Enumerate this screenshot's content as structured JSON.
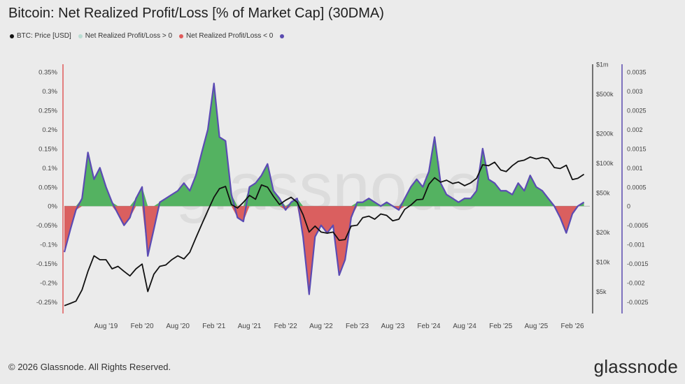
{
  "title": "Bitcoin: Net Realized Profit/Loss [% of Market Cap] (30DMA)",
  "legend": [
    {
      "label": "BTC: Price [USD]",
      "color": "#111111"
    },
    {
      "label": "Net Realized Profit/Loss > 0",
      "color": "#b9ddd2"
    },
    {
      "label": "Net Realized Profit/Loss < 0",
      "color": "#e05b5b"
    },
    {
      "label": "",
      "color": "#5a4bb0"
    }
  ],
  "footer": "© 2026 Glassnode. All Rights Reserved.",
  "logo": "glassnode",
  "watermark": "glassnode",
  "colors": {
    "positive_fill": "#4caf5a",
    "negative_fill": "#d95757",
    "outline": "#5b4bb3",
    "price": "#111111",
    "left_axis": "#e05b5b",
    "right_axis": "#5a4bb0"
  },
  "chart_data": {
    "type": "area",
    "title": "Bitcoin: Net Realized Profit/Loss [% of Market Cap] (30DMA)",
    "x_range": [
      "2019-01-01",
      "2026-05-01"
    ],
    "x_ticks": [
      "Aug '19",
      "Feb '20",
      "Aug '20",
      "Feb '21",
      "Aug '21",
      "Feb '22",
      "Aug '22",
      "Feb '23",
      "Aug '23",
      "Feb '24",
      "Aug '24",
      "Feb '25",
      "Aug '25",
      "Feb '26"
    ],
    "x_tick_dates": [
      "2019-08-01",
      "2020-02-01",
      "2020-08-01",
      "2021-02-01",
      "2021-08-01",
      "2022-02-01",
      "2022-08-01",
      "2023-02-01",
      "2023-08-01",
      "2024-02-01",
      "2024-08-01",
      "2025-02-01",
      "2025-08-01",
      "2026-02-01"
    ],
    "left_axis": {
      "ticks": [
        0.35,
        0.3,
        0.25,
        0.2,
        0.15,
        0.1,
        0.05,
        0,
        -0.05,
        -0.1,
        -0.15,
        -0.2,
        -0.25
      ],
      "labels": [
        "0.35%",
        "0.3%",
        "0.25%",
        "0.2%",
        "0.15%",
        "0.1%",
        "0.05%",
        "0%",
        "-0.05%",
        "-0.1%",
        "-0.15%",
        "-0.2%",
        "-0.25%"
      ],
      "ylim": [
        -0.28,
        0.37
      ]
    },
    "price_axis": {
      "scale": "log",
      "ticks": [
        1000000,
        500000,
        200000,
        100000,
        50000,
        20000,
        10000,
        5000
      ],
      "labels": [
        "$1m",
        "$500k",
        "$200k",
        "$100k",
        "$50k",
        "$20k",
        "$10k",
        "$5k"
      ],
      "ylim": [
        3000,
        1000000
      ]
    },
    "right_axis": {
      "ticks": [
        0.0035,
        0.003,
        0.0025,
        0.002,
        0.0015,
        0.001,
        0.0005,
        0,
        -0.0005,
        -0.001,
        -0.0015,
        -0.002,
        -0.0025
      ],
      "labels": [
        "0.0035",
        "0.003",
        "0.0025",
        "0.002",
        "0.0015",
        "0.001",
        "0.0005",
        "0",
        "-0.0005",
        "-0.001",
        "-0.0015",
        "-0.002",
        "-0.0025"
      ]
    },
    "series": [
      {
        "name": "Net Realized Profit/Loss",
        "x": [
          "2019-01-01",
          "2019-02-01",
          "2019-03-01",
          "2019-04-01",
          "2019-05-01",
          "2019-06-01",
          "2019-07-01",
          "2019-08-01",
          "2019-09-01",
          "2019-10-01",
          "2019-11-01",
          "2019-12-01",
          "2020-01-01",
          "2020-02-01",
          "2020-03-01",
          "2020-04-01",
          "2020-05-01",
          "2020-06-01",
          "2020-07-01",
          "2020-08-01",
          "2020-09-01",
          "2020-10-01",
          "2020-11-01",
          "2020-12-01",
          "2021-01-01",
          "2021-02-01",
          "2021-03-01",
          "2021-04-01",
          "2021-05-01",
          "2021-06-01",
          "2021-07-01",
          "2021-08-01",
          "2021-09-01",
          "2021-10-01",
          "2021-11-01",
          "2021-12-01",
          "2022-01-01",
          "2022-02-01",
          "2022-03-01",
          "2022-04-01",
          "2022-05-01",
          "2022-06-01",
          "2022-07-01",
          "2022-08-01",
          "2022-09-01",
          "2022-10-01",
          "2022-11-01",
          "2022-12-01",
          "2023-01-01",
          "2023-02-01",
          "2023-03-01",
          "2023-04-01",
          "2023-05-01",
          "2023-06-01",
          "2023-07-01",
          "2023-08-01",
          "2023-09-01",
          "2023-10-01",
          "2023-11-01",
          "2023-12-01",
          "2024-01-01",
          "2024-02-01",
          "2024-03-01",
          "2024-04-01",
          "2024-05-01",
          "2024-06-01",
          "2024-07-01",
          "2024-08-01",
          "2024-09-01",
          "2024-10-01",
          "2024-11-01",
          "2024-12-01",
          "2025-01-01",
          "2025-02-01",
          "2025-03-01",
          "2025-04-01",
          "2025-05-01",
          "2025-06-01",
          "2025-07-01",
          "2025-08-01",
          "2025-09-01",
          "2025-10-01",
          "2025-11-01",
          "2025-12-01",
          "2026-01-01",
          "2026-02-01",
          "2026-03-01",
          "2026-04-01"
        ],
        "values": [
          -0.12,
          -0.06,
          -0.01,
          0.02,
          0.14,
          0.07,
          0.1,
          0.05,
          0.01,
          -0.02,
          -0.05,
          -0.03,
          0.02,
          0.05,
          -0.13,
          -0.06,
          0.01,
          0.02,
          0.03,
          0.04,
          0.06,
          0.04,
          0.08,
          0.14,
          0.2,
          0.32,
          0.18,
          0.17,
          0.03,
          -0.03,
          -0.04,
          0.05,
          0.06,
          0.08,
          0.11,
          0.04,
          0.02,
          -0.01,
          0.01,
          0.02,
          -0.08,
          -0.23,
          -0.08,
          -0.05,
          -0.07,
          -0.05,
          -0.18,
          -0.14,
          -0.03,
          0.01,
          0.01,
          0.02,
          0.01,
          0.0,
          0.01,
          0.0,
          -0.01,
          0.02,
          0.05,
          0.07,
          0.05,
          0.09,
          0.18,
          0.06,
          0.03,
          0.02,
          0.01,
          0.02,
          0.02,
          0.04,
          0.15,
          0.07,
          0.06,
          0.04,
          0.04,
          0.03,
          0.06,
          0.04,
          0.08,
          0.05,
          0.04,
          0.02,
          0.0,
          -0.03,
          -0.07,
          -0.02,
          0.0,
          0.01
        ]
      },
      {
        "name": "BTC: Price [USD]",
        "x": [
          "2019-01-01",
          "2019-02-01",
          "2019-03-01",
          "2019-04-01",
          "2019-05-01",
          "2019-06-01",
          "2019-07-01",
          "2019-08-01",
          "2019-09-01",
          "2019-10-01",
          "2019-11-01",
          "2019-12-01",
          "2020-01-01",
          "2020-02-01",
          "2020-03-01",
          "2020-04-01",
          "2020-05-01",
          "2020-06-01",
          "2020-07-01",
          "2020-08-01",
          "2020-09-01",
          "2020-10-01",
          "2020-11-01",
          "2020-12-01",
          "2021-01-01",
          "2021-02-01",
          "2021-03-01",
          "2021-04-01",
          "2021-05-01",
          "2021-06-01",
          "2021-07-01",
          "2021-08-01",
          "2021-09-01",
          "2021-10-01",
          "2021-11-01",
          "2021-12-01",
          "2022-01-01",
          "2022-02-01",
          "2022-03-01",
          "2022-04-01",
          "2022-05-01",
          "2022-06-01",
          "2022-07-01",
          "2022-08-01",
          "2022-09-01",
          "2022-10-01",
          "2022-11-01",
          "2022-12-01",
          "2023-01-01",
          "2023-02-01",
          "2023-03-01",
          "2023-04-01",
          "2023-05-01",
          "2023-06-01",
          "2023-07-01",
          "2023-08-01",
          "2023-09-01",
          "2023-10-01",
          "2023-11-01",
          "2023-12-01",
          "2024-01-01",
          "2024-02-01",
          "2024-03-01",
          "2024-04-01",
          "2024-05-01",
          "2024-06-01",
          "2024-07-01",
          "2024-08-01",
          "2024-09-01",
          "2024-10-01",
          "2024-11-01",
          "2024-12-01",
          "2025-01-01",
          "2025-02-01",
          "2025-03-01",
          "2025-04-01",
          "2025-05-01",
          "2025-06-01",
          "2025-07-01",
          "2025-08-01",
          "2025-09-01",
          "2025-10-01",
          "2025-11-01",
          "2025-12-01",
          "2026-01-01",
          "2026-02-01",
          "2026-03-01",
          "2026-04-01"
        ],
        "values": [
          3600,
          3800,
          4000,
          5200,
          8000,
          11500,
          10500,
          10500,
          8500,
          9000,
          8000,
          7200,
          8500,
          9500,
          5000,
          7500,
          9000,
          9300,
          10500,
          11500,
          10700,
          12500,
          17500,
          24000,
          33000,
          45000,
          55000,
          58000,
          38000,
          35000,
          40000,
          47000,
          43000,
          60000,
          57000,
          46000,
          38000,
          42000,
          45000,
          40000,
          30000,
          20000,
          23000,
          20000,
          19500,
          20000,
          16500,
          16800,
          23000,
          23500,
          28000,
          29000,
          27000,
          30500,
          29500,
          26000,
          27000,
          34000,
          37500,
          42500,
          43000,
          61000,
          71000,
          64000,
          67000,
          62000,
          64000,
          59000,
          63000,
          70000,
          96000,
          94000,
          102000,
          85000,
          82000,
          94000,
          104000,
          107000,
          115000,
          110000,
          114000,
          110000,
          90000,
          88000,
          95000,
          68000,
          70000,
          77000
        ]
      }
    ]
  }
}
